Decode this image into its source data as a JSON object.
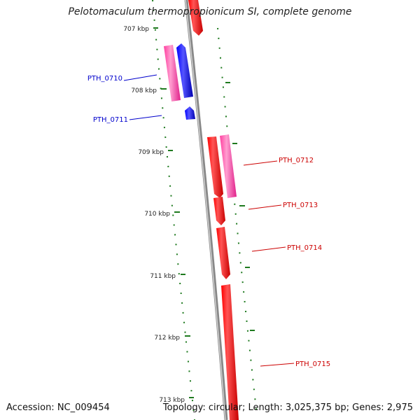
{
  "title": "Pelotomaculum thermopropionicum SI, complete genome",
  "footer": {
    "accession": "Accession: NC_009454",
    "summary": "Topology: circular; Length: 3,025,375 bp; Genes: 2,975"
  },
  "colors": {
    "forward_cds": "#ff0000",
    "forward_rna": "#ff3fa0",
    "reverse_cds": "#0000ff",
    "reverse_rna": "#ff3fa0",
    "backbone": "#888888",
    "ticks": "#1f7a1f",
    "forward_label": "#cc0000",
    "reverse_label": "#0000cc"
  },
  "scale_labels": [
    "707 kbp",
    "708 kbp",
    "709 kbp",
    "710 kbp",
    "711 kbp",
    "712 kbp",
    "713 kbp"
  ],
  "gene_labels": {
    "reverse": [
      "PTH_0710",
      "PTH_0711"
    ],
    "forward": [
      "PTH_0712",
      "PTH_0713",
      "PTH_0714",
      "PTH_0715"
    ]
  }
}
